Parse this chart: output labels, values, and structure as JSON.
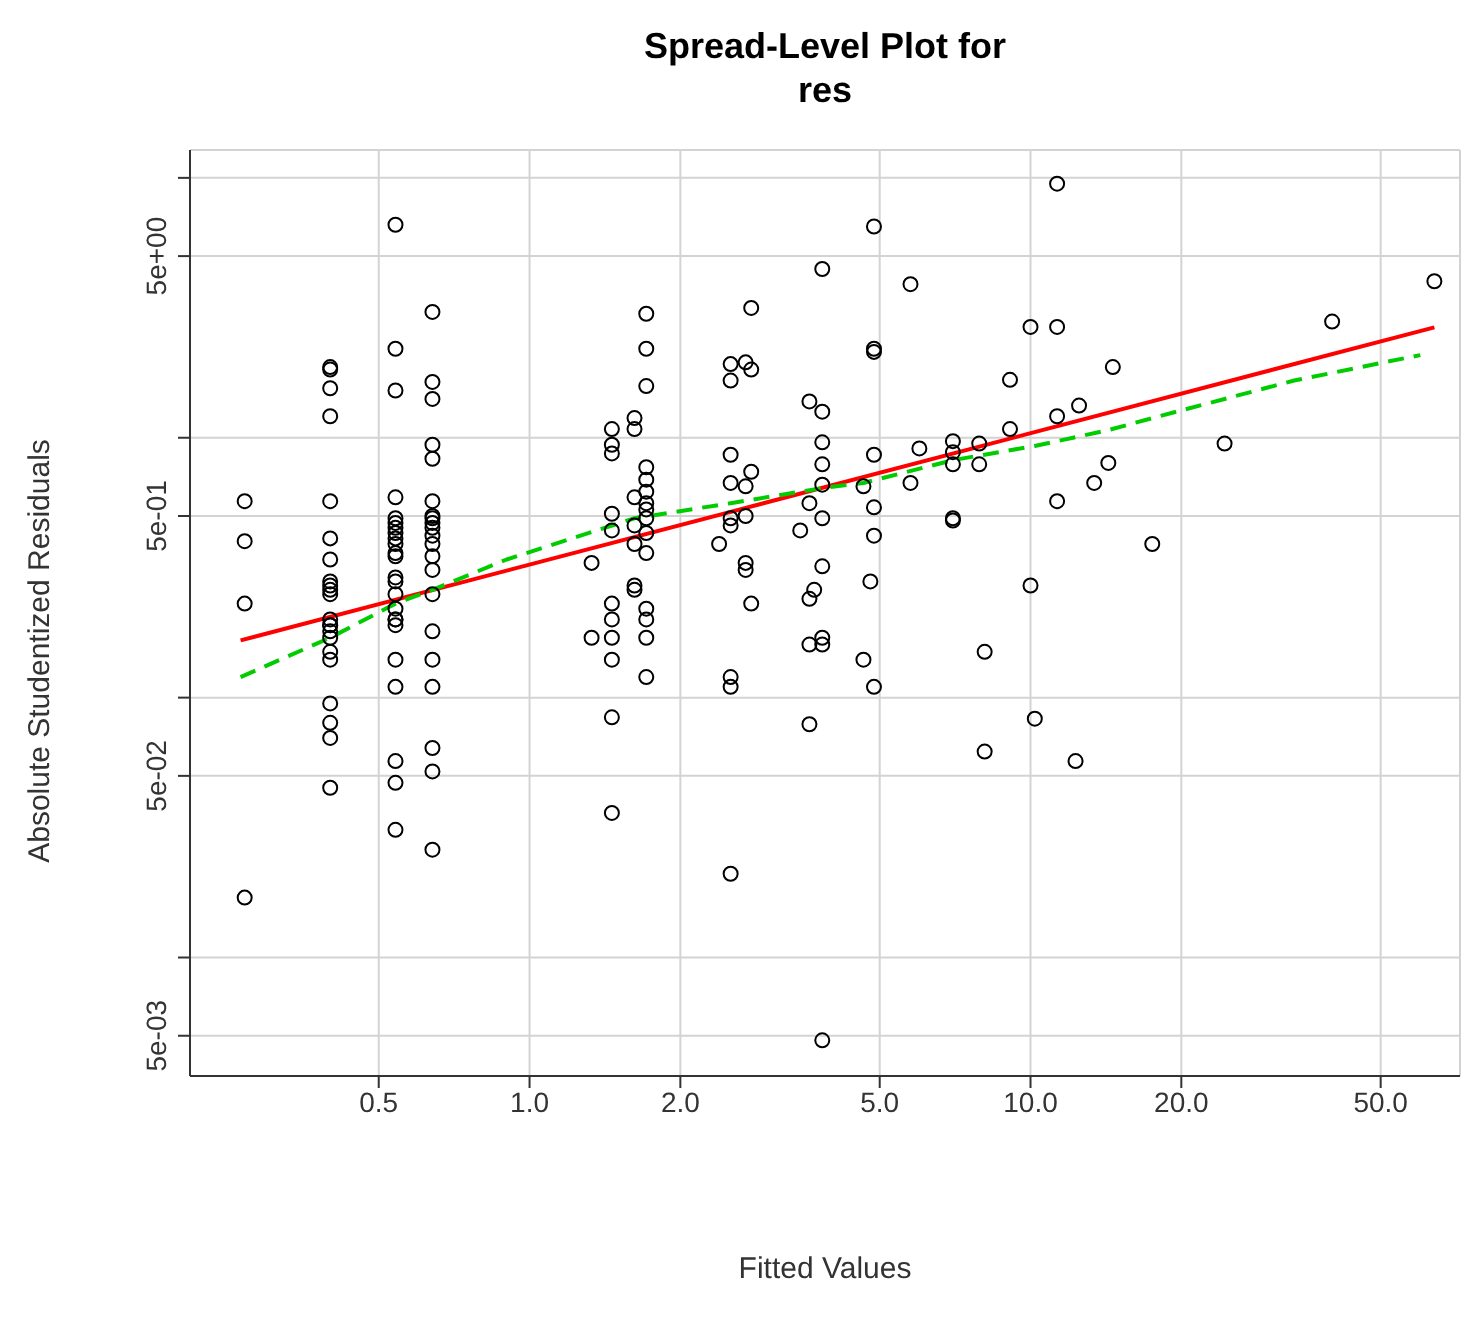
{
  "chart_data": {
    "type": "scatter",
    "title": "Spread-Level Plot for\nres",
    "xlabel": "Fitted Values",
    "ylabel": "Absolute Studentized Residuals",
    "log": "xy",
    "grid": true,
    "xlim": [
      0.21,
      72
    ],
    "xticks": [
      {
        "value": 0.5,
        "label": "0.5"
      },
      {
        "value": 1,
        "label": "1.0"
      },
      {
        "value": 2,
        "label": "2.0"
      },
      {
        "value": 5,
        "label": "5.0"
      },
      {
        "value": 10,
        "label": "10.0"
      },
      {
        "value": 20,
        "label": "20.0"
      },
      {
        "value": 50,
        "label": "50.0"
      }
    ],
    "ylim": [
      0.0035,
      12.8
    ],
    "yticks": [
      {
        "value": 0.005,
        "label": "5e-03"
      },
      {
        "value": 0.01,
        "label": null
      },
      {
        "value": 0.05,
        "label": "5e-02"
      },
      {
        "value": 0.1,
        "label": null
      },
      {
        "value": 0.5,
        "label": "5e-01"
      },
      {
        "value": 1,
        "label": null
      },
      {
        "value": 5,
        "label": "5e+00"
      },
      {
        "value": 10,
        "label": null
      }
    ],
    "series": [
      {
        "marker": "circle",
        "color": "#000000",
        "x": [
          0.27,
          0.27,
          0.27,
          0.27,
          0.4,
          0.4,
          0.4,
          0.4,
          0.4,
          0.4,
          0.4,
          0.4,
          0.4,
          0.4,
          0.4,
          0.4,
          0.4,
          0.4,
          0.4,
          0.4,
          0.4,
          0.4,
          0.4,
          0.4,
          0.4,
          0.4,
          0.54,
          0.54,
          0.54,
          0.54,
          0.54,
          0.54,
          0.54,
          0.54,
          0.54,
          0.54,
          0.54,
          0.54,
          0.54,
          0.54,
          0.54,
          0.54,
          0.54,
          0.54,
          0.54,
          0.54,
          0.54,
          0.54,
          0.54,
          0.54,
          0.64,
          0.64,
          0.64,
          0.64,
          0.64,
          0.64,
          0.64,
          0.64,
          0.64,
          0.64,
          0.64,
          0.64,
          0.64,
          0.64,
          0.64,
          0.64,
          0.64,
          0.64,
          0.64,
          0.64,
          0.64,
          1.33,
          1.33,
          1.46,
          1.46,
          1.46,
          1.46,
          1.46,
          1.46,
          1.46,
          1.46,
          1.46,
          1.46,
          1.46,
          1.62,
          1.62,
          1.62,
          1.62,
          1.62,
          1.62,
          1.62,
          1.71,
          1.71,
          1.71,
          1.71,
          1.71,
          1.71,
          1.71,
          1.71,
          1.71,
          1.71,
          1.71,
          1.71,
          1.71,
          1.71,
          1.71,
          2.39,
          2.52,
          2.52,
          2.52,
          2.52,
          2.52,
          2.52,
          2.52,
          2.52,
          2.52,
          2.7,
          2.7,
          2.7,
          2.7,
          2.7,
          2.77,
          2.77,
          2.77,
          2.77,
          3.47,
          3.62,
          3.62,
          3.62,
          3.62,
          3.62,
          3.7,
          3.84,
          3.84,
          3.84,
          3.84,
          3.84,
          3.84,
          3.84,
          3.84,
          3.84,
          3.84,
          4.64,
          4.64,
          4.79,
          4.87,
          4.87,
          4.87,
          4.87,
          4.87,
          4.87,
          4.87,
          5.76,
          5.76,
          6.0,
          7.0,
          7.0,
          7.0,
          7.0,
          7.0,
          7.9,
          7.9,
          8.1,
          8.1,
          9.1,
          9.1,
          10.0,
          10.0,
          10.2,
          11.3,
          11.3,
          11.3,
          11.3,
          12.3,
          12.5,
          13.4,
          14.3,
          14.6,
          17.5,
          24.4,
          40,
          64
        ],
        "values": [
          0.57,
          0.4,
          0.23,
          0.017,
          1.87,
          1.83,
          1.55,
          1.21,
          0.57,
          0.41,
          0.34,
          0.28,
          0.27,
          0.26,
          0.25,
          0.2,
          0.19,
          0.19,
          0.18,
          0.17,
          0.15,
          0.14,
          0.095,
          0.08,
          0.07,
          0.045,
          6.6,
          2.2,
          1.52,
          0.59,
          0.49,
          0.47,
          0.45,
          0.43,
          0.41,
          0.39,
          0.36,
          0.35,
          0.29,
          0.28,
          0.25,
          0.22,
          0.2,
          0.2,
          0.19,
          0.14,
          0.11,
          0.057,
          0.047,
          0.031,
          3.05,
          1.64,
          1.41,
          0.94,
          0.83,
          0.57,
          0.5,
          0.49,
          0.47,
          0.45,
          0.42,
          0.39,
          0.35,
          0.31,
          0.25,
          0.18,
          0.14,
          0.11,
          0.064,
          0.052,
          0.026,
          0.33,
          0.17,
          1.08,
          0.94,
          0.87,
          0.51,
          0.44,
          0.23,
          0.2,
          0.17,
          0.14,
          0.084,
          0.036,
          1.19,
          1.08,
          0.59,
          0.46,
          0.39,
          0.27,
          0.26,
          3.0,
          2.2,
          1.58,
          0.77,
          0.69,
          0.62,
          0.56,
          0.53,
          0.49,
          0.43,
          0.36,
          0.22,
          0.2,
          0.17,
          0.12,
          0.39,
          1.92,
          1.66,
          0.86,
          0.67,
          0.49,
          0.46,
          0.12,
          0.11,
          0.021,
          1.95,
          0.65,
          0.5,
          0.33,
          0.31,
          3.16,
          1.83,
          0.74,
          0.23,
          0.44,
          1.38,
          0.56,
          0.24,
          0.16,
          0.079,
          0.26,
          4.46,
          1.26,
          0.96,
          0.79,
          0.66,
          0.49,
          0.32,
          0.17,
          0.16,
          0.0048,
          0.65,
          0.14,
          0.28,
          6.5,
          2.2,
          2.14,
          0.86,
          0.54,
          0.42,
          0.11,
          3.9,
          0.67,
          0.91,
          0.97,
          0.88,
          0.79,
          0.49,
          0.48,
          0.95,
          0.79,
          0.15,
          0.062,
          1.67,
          1.08,
          2.67,
          0.27,
          0.083,
          9.5,
          2.67,
          1.21,
          0.57,
          0.057,
          1.33,
          0.67,
          0.8,
          1.87,
          0.39,
          0.95,
          2.8,
          4.0
        ]
      },
      {
        "type": "line",
        "color": "#ff0000",
        "line_style": "solid",
        "x": [
          0.265,
          64
        ],
        "values": [
          0.166,
          2.66
        ]
      },
      {
        "type": "line",
        "color": "#00cc00",
        "line_style": "dashed",
        "x": [
          0.265,
          0.4,
          0.54,
          0.64,
          0.9,
          1.62,
          2.52,
          3.84,
          4.64,
          7.0,
          10.2,
          14.3,
          17.5,
          33.6,
          60
        ],
        "values": [
          0.12,
          0.17,
          0.23,
          0.26,
          0.34,
          0.49,
          0.56,
          0.64,
          0.67,
          0.82,
          0.93,
          1.07,
          1.19,
          1.66,
          2.08
        ]
      }
    ]
  }
}
